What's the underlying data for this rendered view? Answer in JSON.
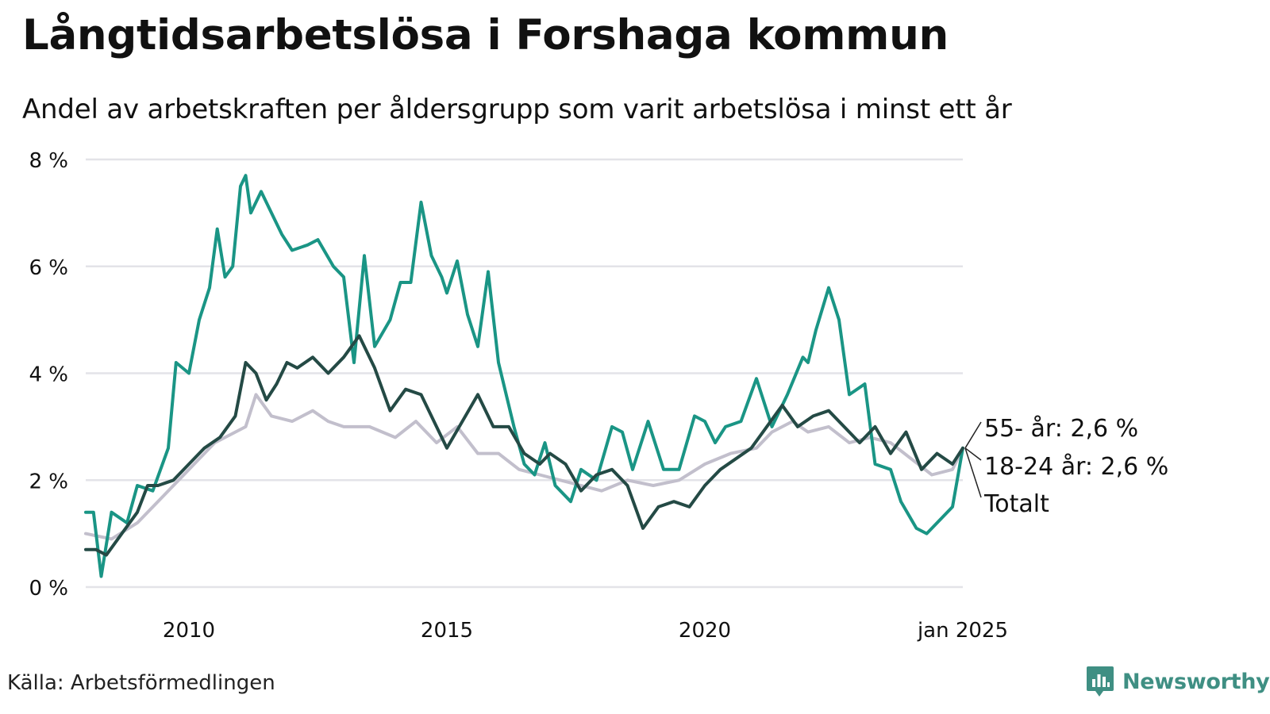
{
  "header": {
    "title": "Långtidsarbetslösa i Forshaga kommun",
    "subtitle": "Andel av arbetskraften per åldersgrupp som varit arbetslösa i minst ett år"
  },
  "footer": {
    "source": "Källa: Arbetsförmedlingen",
    "brand": "Newsworthy"
  },
  "colors": {
    "age_55": "#c2bfcc",
    "age_18_24": "#1a9585",
    "total": "#244a45",
    "grid": "#e3e3e8",
    "brand": "#3f8f83"
  },
  "chart_data": {
    "type": "line",
    "title": "Långtidsarbetslösa i Forshaga kommun",
    "xlabel": "",
    "ylabel": "",
    "xlim": [
      2008.0,
      2025.0
    ],
    "ylim": [
      0,
      8
    ],
    "y_ticks": [
      0,
      2,
      4,
      6,
      8
    ],
    "y_tick_labels": [
      "0 %",
      "2 %",
      "4 %",
      "6 %",
      "8 %"
    ],
    "x_ticks": [
      2010,
      2015,
      2020,
      2025
    ],
    "x_tick_labels": [
      "2010",
      "2015",
      "2020",
      "jan 2025"
    ],
    "grid": true,
    "series": [
      {
        "name": "55- år",
        "label": "55- år: 2,6 %",
        "color": "#c2bfcc",
        "x": [
          2008.0,
          2008.5,
          2009.0,
          2009.5,
          2010.0,
          2010.5,
          2010.9,
          2011.1,
          2011.3,
          2011.6,
          2012.0,
          2012.4,
          2012.7,
          2013.0,
          2013.5,
          2014.0,
          2014.4,
          2014.8,
          2015.2,
          2015.6,
          2016.0,
          2016.4,
          2016.8,
          2017.2,
          2017.6,
          2018.0,
          2018.5,
          2019.0,
          2019.5,
          2020.0,
          2020.5,
          2021.0,
          2021.3,
          2021.7,
          2022.0,
          2022.4,
          2022.8,
          2023.2,
          2023.6,
          2024.0,
          2024.4,
          2024.8,
          2025.0
        ],
        "values": [
          1.0,
          0.9,
          1.2,
          1.7,
          2.2,
          2.7,
          2.9,
          3.0,
          3.6,
          3.2,
          3.1,
          3.3,
          3.1,
          3.0,
          3.0,
          2.8,
          3.1,
          2.7,
          3.0,
          2.5,
          2.5,
          2.2,
          2.1,
          2.0,
          1.9,
          1.8,
          2.0,
          1.9,
          2.0,
          2.3,
          2.5,
          2.6,
          2.9,
          3.1,
          2.9,
          3.0,
          2.7,
          2.8,
          2.7,
          2.4,
          2.1,
          2.2,
          2.6
        ]
      },
      {
        "name": "18-24 år",
        "label": "18-24 år: 2,6 %",
        "color": "#1a9585",
        "x": [
          2008.0,
          2008.15,
          2008.3,
          2008.5,
          2008.8,
          2009.0,
          2009.3,
          2009.6,
          2009.75,
          2010.0,
          2010.2,
          2010.4,
          2010.55,
          2010.7,
          2010.85,
          2011.0,
          2011.1,
          2011.2,
          2011.4,
          2011.6,
          2011.8,
          2012.0,
          2012.3,
          2012.5,
          2012.8,
          2013.0,
          2013.2,
          2013.4,
          2013.6,
          2013.9,
          2014.1,
          2014.3,
          2014.5,
          2014.7,
          2014.9,
          2015.0,
          2015.2,
          2015.4,
          2015.6,
          2015.8,
          2016.0,
          2016.3,
          2016.5,
          2016.7,
          2016.9,
          2017.1,
          2017.4,
          2017.6,
          2017.9,
          2018.2,
          2018.4,
          2018.6,
          2018.9,
          2019.2,
          2019.5,
          2019.8,
          2020.0,
          2020.2,
          2020.4,
          2020.7,
          2021.0,
          2021.3,
          2021.6,
          2021.9,
          2022.0,
          2022.15,
          2022.4,
          2022.6,
          2022.8,
          2023.1,
          2023.3,
          2023.6,
          2023.8,
          2024.1,
          2024.3,
          2024.6,
          2024.8,
          2025.0
        ],
        "values": [
          1.4,
          1.4,
          0.2,
          1.4,
          1.2,
          1.9,
          1.8,
          2.6,
          4.2,
          4.0,
          5.0,
          5.6,
          6.7,
          5.8,
          6.0,
          7.5,
          7.7,
          7.0,
          7.4,
          7.0,
          6.6,
          6.3,
          6.4,
          6.5,
          6.0,
          5.8,
          4.2,
          6.2,
          4.5,
          5.0,
          5.7,
          5.7,
          7.2,
          6.2,
          5.8,
          5.5,
          6.1,
          5.1,
          4.5,
          5.9,
          4.2,
          3.0,
          2.3,
          2.1,
          2.7,
          1.9,
          1.6,
          2.2,
          2.0,
          3.0,
          2.9,
          2.2,
          3.1,
          2.2,
          2.2,
          3.2,
          3.1,
          2.7,
          3.0,
          3.1,
          3.9,
          3.0,
          3.6,
          4.3,
          4.2,
          4.8,
          5.6,
          5.0,
          3.6,
          3.8,
          2.3,
          2.2,
          1.6,
          1.1,
          1.0,
          1.3,
          1.5,
          2.6
        ]
      },
      {
        "name": "Totalt",
        "label": "Totalt",
        "color": "#244a45",
        "x": [
          2008.0,
          2008.2,
          2008.4,
          2008.7,
          2009.0,
          2009.2,
          2009.4,
          2009.7,
          2010.0,
          2010.3,
          2010.6,
          2010.9,
          2011.1,
          2011.3,
          2011.5,
          2011.7,
          2011.9,
          2012.1,
          2012.4,
          2012.7,
          2013.0,
          2013.3,
          2013.6,
          2013.9,
          2014.2,
          2014.5,
          2014.8,
          2015.0,
          2015.3,
          2015.6,
          2015.9,
          2016.2,
          2016.5,
          2016.8,
          2017.0,
          2017.3,
          2017.6,
          2017.9,
          2018.2,
          2018.5,
          2018.8,
          2019.1,
          2019.4,
          2019.7,
          2020.0,
          2020.3,
          2020.6,
          2020.9,
          2021.2,
          2021.5,
          2021.8,
          2022.1,
          2022.4,
          2022.7,
          2023.0,
          2023.3,
          2023.6,
          2023.9,
          2024.2,
          2024.5,
          2024.8,
          2025.0
        ],
        "values": [
          0.7,
          0.7,
          0.6,
          1.0,
          1.4,
          1.9,
          1.9,
          2.0,
          2.3,
          2.6,
          2.8,
          3.2,
          4.2,
          4.0,
          3.5,
          3.8,
          4.2,
          4.1,
          4.3,
          4.0,
          4.3,
          4.7,
          4.1,
          3.3,
          3.7,
          3.6,
          3.0,
          2.6,
          3.1,
          3.6,
          3.0,
          3.0,
          2.5,
          2.3,
          2.5,
          2.3,
          1.8,
          2.1,
          2.2,
          1.9,
          1.1,
          1.5,
          1.6,
          1.5,
          1.9,
          2.2,
          2.4,
          2.6,
          3.0,
          3.4,
          3.0,
          3.2,
          3.3,
          3.0,
          2.7,
          3.0,
          2.5,
          2.9,
          2.2,
          2.5,
          2.3,
          2.6
        ]
      }
    ]
  }
}
